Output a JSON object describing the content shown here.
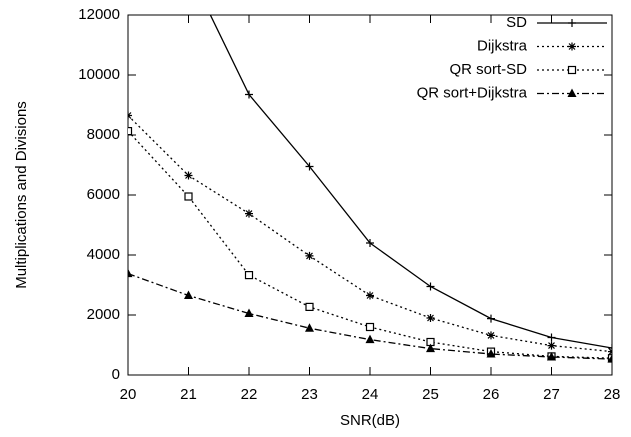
{
  "chart_data": {
    "type": "line",
    "xlabel": "SNR(dB)",
    "ylabel": "Multiplications and Divisions",
    "x": [
      20,
      21,
      22,
      23,
      24,
      25,
      26,
      27,
      28
    ],
    "xlim": [
      20,
      28
    ],
    "xticks": [
      20,
      21,
      22,
      23,
      24,
      25,
      26,
      27,
      28
    ],
    "ylim": [
      0,
      12000
    ],
    "yticks": [
      0,
      2000,
      4000,
      6000,
      8000,
      10000,
      12000
    ],
    "legend": "upper right",
    "series": [
      {
        "name": "SD",
        "color": "#000000",
        "dash": "solid",
        "marker": "plus",
        "values": [
          null,
          13500,
          9350,
          6950,
          4400,
          2950,
          1880,
          1250,
          900
        ]
      },
      {
        "name": "Dijkstra",
        "color": "#000000",
        "dash": "dotted",
        "marker": "star",
        "values": [
          8650,
          6650,
          5380,
          3970,
          2650,
          1900,
          1320,
          980,
          780
        ]
      },
      {
        "name": "QR sort-SD",
        "color": "#000000",
        "dash": "dotted",
        "marker": "square",
        "values": [
          8130,
          5950,
          3330,
          2270,
          1600,
          1100,
          780,
          620,
          560
        ]
      },
      {
        "name": "QR sort+Dijkstra",
        "color": "#000000",
        "dash": "dashdot",
        "marker": "triangle",
        "values": [
          3380,
          2650,
          2050,
          1560,
          1180,
          880,
          700,
          600,
          530
        ]
      }
    ]
  }
}
